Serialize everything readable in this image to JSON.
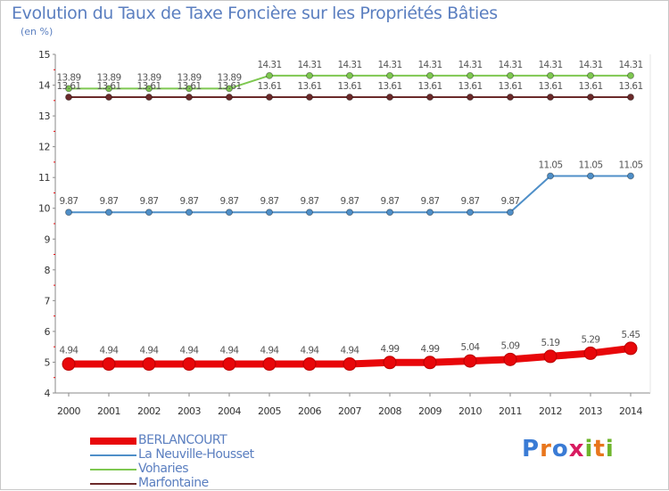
{
  "title": "Evolution du Taux de Taxe Foncière sur les Propriétés Bâties",
  "unit_label": "(en %)",
  "logo": {
    "text": "Proxiti",
    "colors": [
      "#3a7bd5",
      "#e8761c",
      "#3a7bd5",
      "#d81b60",
      "#6fb52c",
      "#e8761c",
      "#6fb52c"
    ]
  },
  "chart_data": {
    "type": "line",
    "title": "Evolution du Taux de Taxe Foncière sur les Propriétés Bâties",
    "ylabel": "(en %)",
    "xlabel": "",
    "ylim": [
      4,
      15
    ],
    "yticks": [
      4,
      5,
      6,
      7,
      8,
      9,
      10,
      11,
      12,
      13,
      14,
      15
    ],
    "grid": false,
    "legend_position": "bottom-left",
    "categories": [
      "2000",
      "2001",
      "2002",
      "2003",
      "2004",
      "2005",
      "2006",
      "2007",
      "2008",
      "2009",
      "2010",
      "2011",
      "2012",
      "2013",
      "2014"
    ],
    "series": [
      {
        "name": "BERLANCOURT",
        "color": "#e8070a",
        "emphasis": true,
        "values": [
          4.94,
          4.94,
          4.94,
          4.94,
          4.94,
          4.94,
          4.94,
          4.94,
          4.99,
          4.99,
          5.04,
          5.09,
          5.19,
          5.29,
          5.45
        ],
        "labels": [
          "4.94",
          "4.94",
          "4.94",
          "4.94",
          "4.94",
          "4.94",
          "4.94",
          "4.94",
          "4.99",
          "4.99",
          "5.04",
          "5.09",
          "5.19",
          "5.29",
          "5.45"
        ]
      },
      {
        "name": "La Neuville-Housset",
        "color": "#4f8fc8",
        "values": [
          9.87,
          9.87,
          9.87,
          9.87,
          9.87,
          9.87,
          9.87,
          9.87,
          9.87,
          9.87,
          9.87,
          9.87,
          11.05,
          11.05,
          11.05
        ],
        "labels": [
          "9.87",
          "9.87",
          "9.87",
          "9.87",
          "9.87",
          "9.87",
          "9.87",
          "9.87",
          "9.87",
          "9.87",
          "9.87",
          "9.87",
          "11.05",
          "11.05",
          "11.05"
        ]
      },
      {
        "name": "Voharies",
        "color": "#7ec850",
        "values": [
          13.89,
          13.89,
          13.89,
          13.89,
          13.89,
          14.31,
          14.31,
          14.31,
          14.31,
          14.31,
          14.31,
          14.31,
          14.31,
          14.31,
          14.31
        ],
        "labels": [
          "13.89",
          "13.89",
          "13.89",
          "13.89",
          "13.89",
          "14.31",
          "14.31",
          "14.31",
          "14.31",
          "14.31",
          "14.31",
          "14.31",
          "14.31",
          "14.31",
          "14.31"
        ]
      },
      {
        "name": "Marfontaine",
        "color": "#6b2a2a",
        "values": [
          13.61,
          13.61,
          13.61,
          13.61,
          13.61,
          13.61,
          13.61,
          13.61,
          13.61,
          13.61,
          13.61,
          13.61,
          13.61,
          13.61,
          13.61
        ],
        "labels": [
          "13.61",
          "13.61",
          "13.61",
          "13.61",
          "13.61",
          "13.61",
          "13.61",
          "13.61",
          "13.61",
          "13.61",
          "13.61",
          "13.61",
          "13.61",
          "13.61",
          "13.61"
        ]
      }
    ]
  }
}
